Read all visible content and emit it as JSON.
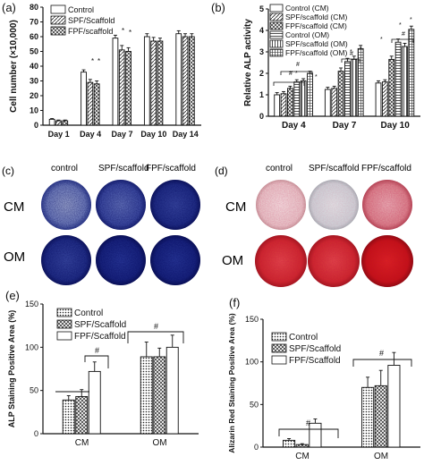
{
  "panels": [
    {
      "id": "a",
      "label": "(a)",
      "legend": [
        "Control",
        "SPF/Scaffold",
        "FPF/scaffold"
      ]
    },
    {
      "id": "b",
      "label": "(b)",
      "legend": [
        "Control (CM)",
        "SPF/scaffold (CM)",
        "FPF/scaffold (CM)",
        "Control (OM)",
        "SPF/scaffold (OM)",
        "FPF/scaffold (OM)"
      ]
    },
    {
      "id": "c",
      "label": "(c)"
    },
    {
      "id": "d",
      "label": "(d)"
    },
    {
      "id": "e",
      "label": "(e)",
      "legend": [
        "Control",
        "SPF/Scaffold",
        "FPF/Scaffold"
      ]
    },
    {
      "id": "f",
      "label": "(f)",
      "legend": [
        "Control",
        "SPF/Scaffold",
        "FPF/Scaffold"
      ]
    }
  ],
  "stain_grids": [
    {
      "panel": "c",
      "columns": [
        "control",
        "SPF/scaffold",
        "FPF/scaffold"
      ],
      "rows": [
        "CM",
        "OM"
      ]
    },
    {
      "panel": "d",
      "columns": [
        "control",
        "SPF/scaffold",
        "FPF/scaffold"
      ],
      "rows": [
        "CM",
        "OM"
      ]
    }
  ],
  "chart_data": [
    {
      "type": "bar",
      "panel": "a",
      "categories": [
        "Day 1",
        "Day 4",
        "Day 7",
        "Day 10",
        "Day 14"
      ],
      "ylabel": "Cell number (×10,000)",
      "ylim": [
        0,
        80
      ],
      "yticks": [
        0,
        10,
        20,
        30,
        40,
        50,
        60,
        70,
        80
      ],
      "series": [
        {
          "name": "Control",
          "values": [
            4,
            36,
            59,
            60,
            62
          ],
          "errors": [
            0.5,
            1.5,
            2,
            2,
            2
          ]
        },
        {
          "name": "SPF/Scaffold",
          "values": [
            3,
            29,
            51,
            57,
            60
          ],
          "errors": [
            0.5,
            2,
            3,
            2.5,
            2
          ]
        },
        {
          "name": "FPF/scaffold",
          "values": [
            3,
            28,
            50,
            57,
            60
          ],
          "errors": [
            0.5,
            2,
            2.5,
            2,
            2
          ]
        }
      ]
    },
    {
      "type": "bar",
      "panel": "b",
      "categories": [
        "Day 4",
        "Day 7",
        "Day 10"
      ],
      "ylabel": "Relative ALP activity",
      "ylim": [
        0,
        5
      ],
      "yticks": [
        0,
        1,
        2,
        3,
        4,
        5
      ],
      "series": [
        {
          "name": "Control (CM)",
          "values": [
            1.0,
            1.25,
            1.55
          ],
          "errors": [
            0.1,
            0.1,
            0.1
          ]
        },
        {
          "name": "SPF/scaffold (CM)",
          "values": [
            1.05,
            1.3,
            1.6
          ],
          "errors": [
            0.1,
            0.1,
            0.1
          ]
        },
        {
          "name": "FPF/scaffold (CM)",
          "values": [
            1.3,
            2.1,
            2.65
          ],
          "errors": [
            0.1,
            0.15,
            0.15
          ]
        },
        {
          "name": "Control (OM)",
          "values": [
            1.6,
            2.55,
            3.45
          ],
          "errors": [
            0.1,
            0.15,
            0.15
          ]
        },
        {
          "name": "SPF/scaffold (OM)",
          "values": [
            1.65,
            2.65,
            3.25
          ],
          "errors": [
            0.1,
            0.15,
            0.15
          ]
        },
        {
          "name": "FPF/scaffold (OM)",
          "values": [
            2.0,
            3.15,
            4.05
          ],
          "errors": [
            0.1,
            0.15,
            0.15
          ]
        }
      ]
    },
    {
      "type": "bar",
      "panel": "e",
      "categories": [
        "CM",
        "OM"
      ],
      "ylabel": "ALP Staining Positive Area (%)",
      "ylim": [
        0,
        150
      ],
      "yticks": [
        0,
        50,
        100,
        150
      ],
      "series": [
        {
          "name": "Control",
          "values": [
            39,
            89
          ],
          "errors": [
            5,
            17
          ]
        },
        {
          "name": "SPF/Scaffold",
          "values": [
            43,
            89
          ],
          "errors": [
            8,
            10
          ]
        },
        {
          "name": "FPF/Scaffold",
          "values": [
            72,
            100
          ],
          "errors": [
            11,
            14
          ]
        }
      ]
    },
    {
      "type": "bar",
      "panel": "f",
      "categories": [
        "CM",
        "OM"
      ],
      "ylabel": "Alizarin Red Staining Positive Area (%)",
      "ylim": [
        0,
        150
      ],
      "yticks": [
        0,
        50,
        100,
        150
      ],
      "series": [
        {
          "name": "Control",
          "values": [
            8,
            70
          ],
          "errors": [
            2,
            12
          ]
        },
        {
          "name": "SPF/Scaffold",
          "values": [
            3,
            72
          ],
          "errors": [
            1,
            18
          ]
        },
        {
          "name": "FPF/Scaffold",
          "values": [
            28,
            96
          ],
          "errors": [
            5,
            15
          ]
        }
      ]
    }
  ],
  "significance": {
    "star": "*",
    "hash": "#"
  }
}
